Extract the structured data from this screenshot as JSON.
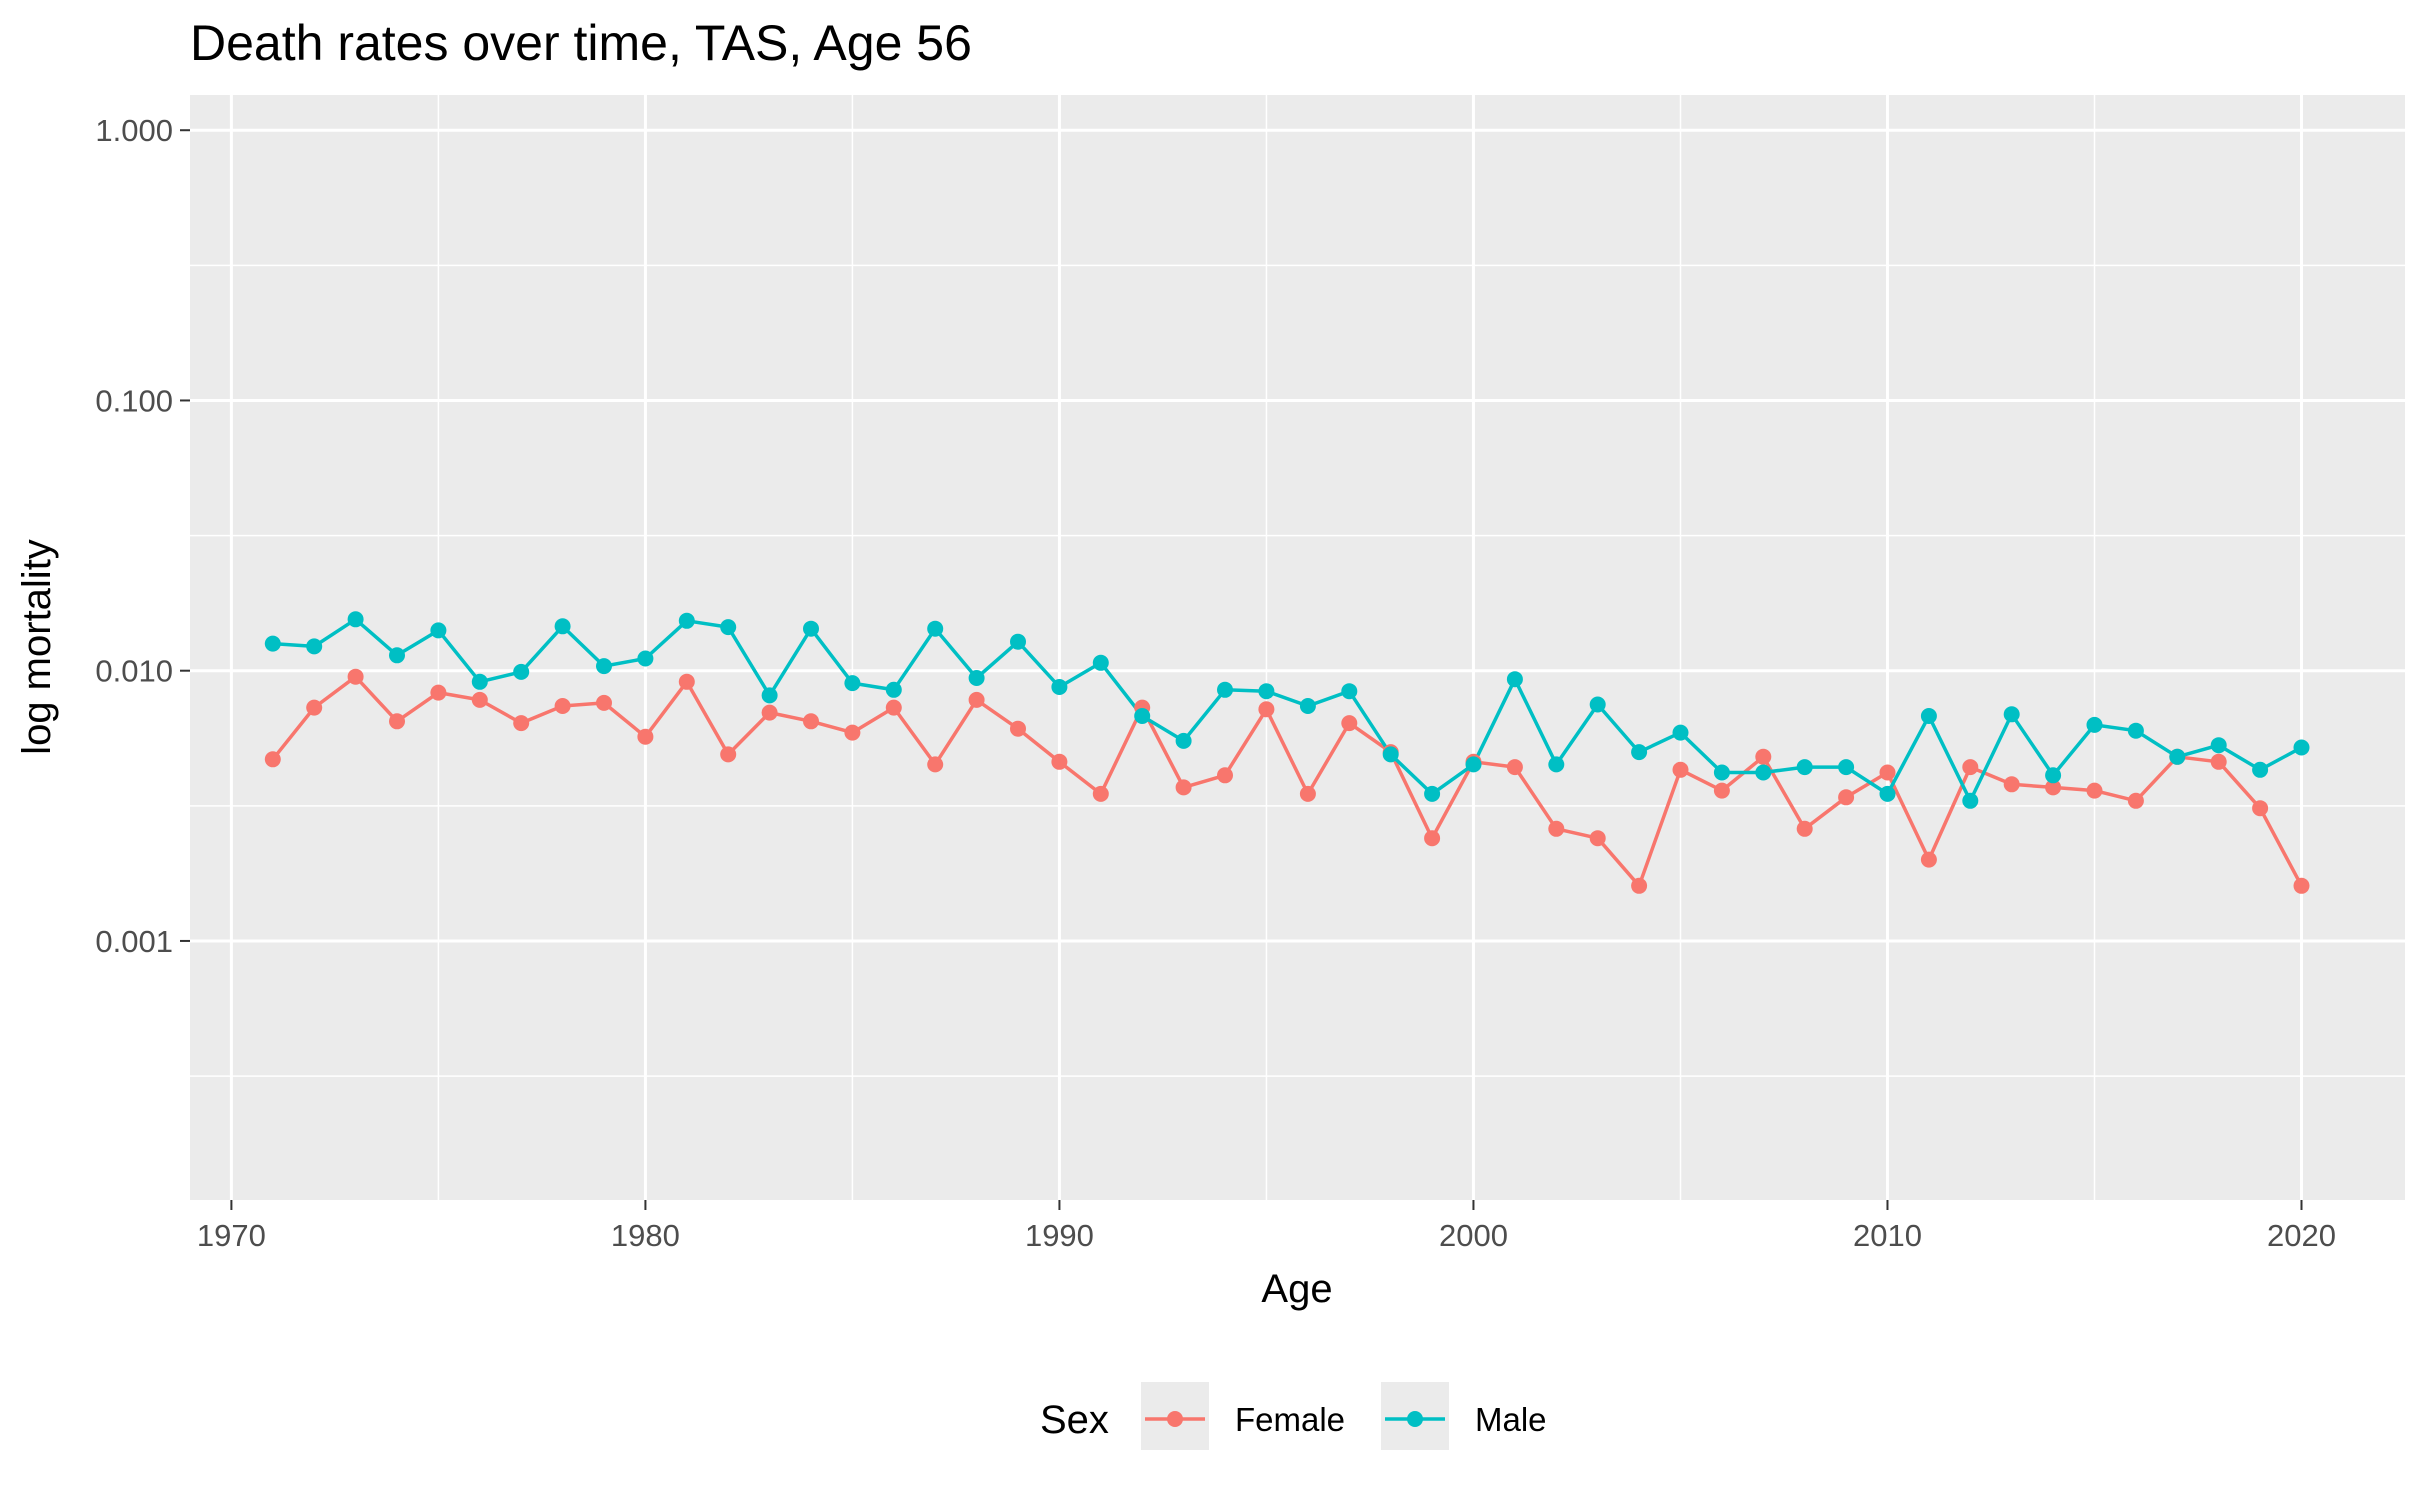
{
  "chart_data": {
    "type": "line",
    "title": "Death rates over time, TAS, Age 56",
    "xlabel": "Age",
    "ylabel": "log mortality",
    "yscale": "log10",
    "xlim": [
      1969,
      2022.5
    ],
    "ylim": [
      0.00011,
      1.35
    ],
    "x_ticks": [
      1970,
      1980,
      1990,
      2000,
      2010,
      2020
    ],
    "x_tick_labels": [
      "1970",
      "1980",
      "1990",
      "2000",
      "2010",
      "2020"
    ],
    "y_ticks": [
      0.001,
      0.01,
      0.1,
      1
    ],
    "y_tick_labels": [
      "0.001",
      "0.010",
      "0.100",
      "1.000"
    ],
    "grid": true,
    "legend": {
      "title": "Sex",
      "position": "bottom"
    },
    "x": [
      1971,
      1972,
      1973,
      1974,
      1975,
      1976,
      1977,
      1978,
      1979,
      1980,
      1981,
      1982,
      1983,
      1984,
      1985,
      1986,
      1987,
      1988,
      1989,
      1990,
      1991,
      1992,
      1993,
      1994,
      1995,
      1996,
      1997,
      1998,
      1999,
      2000,
      2001,
      2002,
      2003,
      2004,
      2005,
      2006,
      2007,
      2008,
      2009,
      2010,
      2011,
      2012,
      2013,
      2014,
      2015,
      2016,
      2017,
      2018,
      2019,
      2020
    ],
    "series": [
      {
        "name": "Female",
        "color": "#F8766D",
        "values": [
          0.0047,
          0.0073,
          0.0095,
          0.0065,
          0.0083,
          0.0078,
          0.0064,
          0.0074,
          0.0076,
          0.0057,
          0.0091,
          0.0049,
          0.007,
          0.0065,
          0.0059,
          0.0073,
          0.0045,
          0.0078,
          0.0061,
          0.0046,
          0.0035,
          0.0073,
          0.0037,
          0.0041,
          0.0072,
          0.0035,
          0.0064,
          0.005,
          0.0024,
          0.0046,
          0.0044,
          0.0026,
          0.0024,
          0.0016,
          0.0043,
          0.0036,
          0.0048,
          0.0026,
          0.0034,
          0.0042,
          0.002,
          0.0044,
          0.0038,
          0.0037,
          0.0036,
          0.0033,
          0.0048,
          0.0046,
          0.0031,
          0.0016
        ]
      },
      {
        "name": "Male",
        "color": "#00BFC4",
        "values": [
          0.0126,
          0.0123,
          0.0155,
          0.0114,
          0.0141,
          0.0091,
          0.0099,
          0.0146,
          0.0104,
          0.0111,
          0.0153,
          0.0145,
          0.0081,
          0.0143,
          0.009,
          0.0085,
          0.0143,
          0.0094,
          0.0128,
          0.0087,
          0.0107,
          0.0068,
          0.0055,
          0.0085,
          0.0084,
          0.0074,
          0.0084,
          0.0049,
          0.0035,
          0.0045,
          0.0093,
          0.0045,
          0.0075,
          0.005,
          0.0059,
          0.0042,
          0.0042,
          0.0044,
          0.0044,
          0.0035,
          0.0068,
          0.0033,
          0.0069,
          0.0041,
          0.0063,
          0.006,
          0.0048,
          0.0053,
          0.0043,
          0.0052
        ]
      }
    ]
  }
}
